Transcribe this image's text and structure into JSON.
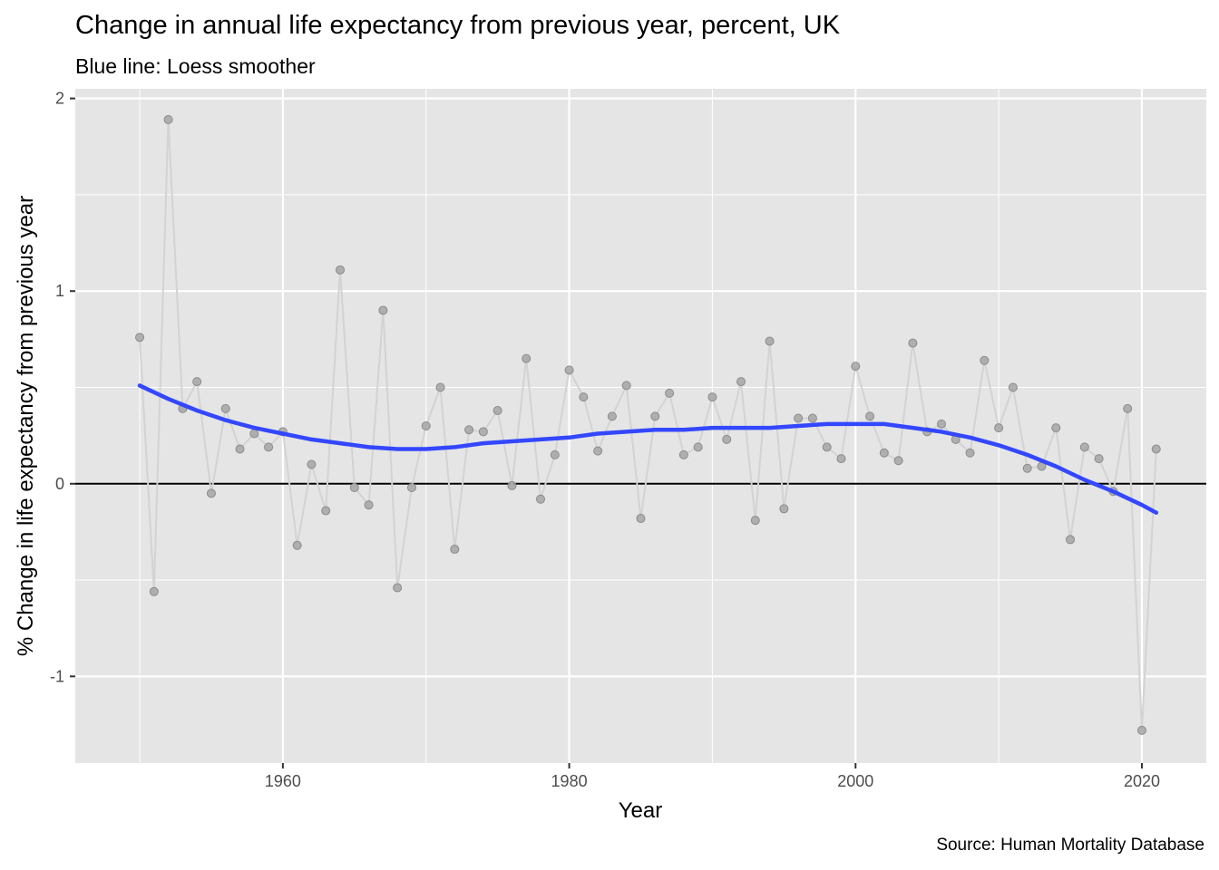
{
  "chart_data": {
    "type": "line",
    "title": "Change in annual life expectancy from previous year, percent, UK",
    "subtitle": "Blue line: Loess smoother",
    "caption": "Source: Human Mortality Database",
    "xlabel": "Year",
    "ylabel": "% Change in life expectancy from previous year",
    "xlim": [
      1945.5,
      2024.5
    ],
    "ylim": [
      -1.45,
      2.05
    ],
    "x_ticks": [
      1960,
      1980,
      2000,
      2020
    ],
    "x_tick_labels": [
      "1960",
      "1980",
      "2000",
      "2020"
    ],
    "y_ticks": [
      -1,
      0,
      1,
      2
    ],
    "y_tick_labels": [
      "-1",
      "0",
      "1",
      "2"
    ],
    "x_minor_ticks": [
      1950,
      1970,
      1990,
      2010
    ],
    "y_minor_ticks": [
      -0.5,
      0.5,
      1.5
    ],
    "grid": true,
    "reference_line": 0,
    "colors": {
      "panel": "#e5e5e5",
      "grid": "#ffffff",
      "points": "#a6a6a6",
      "points_stroke": "#8a8a8a",
      "raw_line": "#d3d3d3",
      "smooth_line": "#3347ff",
      "zero_line": "#000000"
    },
    "series": [
      {
        "type": "line+points",
        "x": [
          1950,
          1951,
          1952,
          1953,
          1954,
          1955,
          1956,
          1957,
          1958,
          1959,
          1960,
          1961,
          1962,
          1963,
          1964,
          1965,
          1966,
          1967,
          1968,
          1969,
          1970,
          1971,
          1972,
          1973,
          1974,
          1975,
          1976,
          1977,
          1978,
          1979,
          1980,
          1981,
          1982,
          1983,
          1984,
          1985,
          1986,
          1987,
          1988,
          1989,
          1990,
          1991,
          1992,
          1993,
          1994,
          1995,
          1996,
          1997,
          1998,
          1999,
          2000,
          2001,
          2002,
          2003,
          2004,
          2005,
          2006,
          2007,
          2008,
          2009,
          2010,
          2011,
          2012,
          2013,
          2014,
          2015,
          2016,
          2017,
          2018,
          2019,
          2020,
          2021
        ],
        "y": [
          0.76,
          -0.56,
          1.89,
          0.39,
          0.53,
          -0.05,
          0.39,
          0.18,
          0.26,
          0.19,
          0.27,
          -0.32,
          0.1,
          -0.14,
          1.11,
          -0.02,
          -0.11,
          0.9,
          -0.54,
          -0.02,
          0.3,
          0.5,
          -0.34,
          0.28,
          0.27,
          0.38,
          -0.01,
          0.65,
          -0.08,
          0.15,
          0.59,
          0.45,
          0.17,
          0.35,
          0.51,
          -0.18,
          0.35,
          0.47,
          0.15,
          0.19,
          0.45,
          0.23,
          0.53,
          -0.19,
          0.74,
          -0.13,
          0.34,
          0.34,
          0.19,
          0.13,
          0.61,
          0.35,
          0.16,
          0.12,
          0.73,
          0.27,
          0.31,
          0.23,
          0.16,
          0.64,
          0.29,
          0.5,
          0.08,
          0.09,
          0.29,
          -0.29,
          0.19,
          0.13,
          -0.04,
          0.39,
          -1.28,
          0.18
        ]
      },
      {
        "type": "smooth",
        "x": [
          1950,
          1952,
          1954,
          1956,
          1958,
          1960,
          1962,
          1964,
          1966,
          1968,
          1970,
          1972,
          1974,
          1976,
          1978,
          1980,
          1982,
          1984,
          1986,
          1988,
          1990,
          1992,
          1994,
          1996,
          1998,
          2000,
          2002,
          2004,
          2006,
          2008,
          2010,
          2012,
          2014,
          2016,
          2018,
          2020,
          2021
        ],
        "y": [
          0.51,
          0.44,
          0.38,
          0.33,
          0.29,
          0.26,
          0.23,
          0.21,
          0.19,
          0.18,
          0.18,
          0.19,
          0.21,
          0.22,
          0.23,
          0.24,
          0.26,
          0.27,
          0.28,
          0.28,
          0.29,
          0.29,
          0.29,
          0.3,
          0.31,
          0.31,
          0.31,
          0.29,
          0.27,
          0.24,
          0.2,
          0.15,
          0.09,
          0.02,
          -0.04,
          -0.11,
          -0.15
        ]
      }
    ]
  }
}
